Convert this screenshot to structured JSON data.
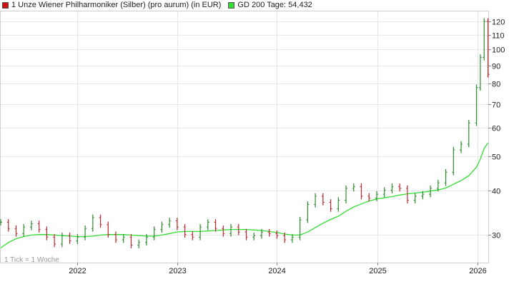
{
  "legend": {
    "price_label": "1 Unze Wiener Philharmoniker (Silber) (pro aurum) (in EUR)",
    "ma_label": "GD 200 Tage: 54,432"
  },
  "colors": {
    "up": "#2e8b2e",
    "down": "#c0262c",
    "ma": "#33dd33",
    "price_swatch": "#cc1111",
    "ma_swatch": "#33dd33",
    "grid": "#e6e6e6"
  },
  "footnote": "1 Tick = 1 Woche",
  "chart_data": {
    "type": "line",
    "y_scale": "log",
    "ylim": [
      25,
      128
    ],
    "y_ticks": [
      30,
      40,
      50,
      60,
      70,
      80,
      90,
      100,
      110,
      120
    ],
    "x_ticks": [
      "2022",
      "2023",
      "2024",
      "2025",
      "2026"
    ],
    "x_tick_dates": [
      "2022-01-01",
      "2023-01-01",
      "2024-01-01",
      "2025-01-01",
      "2026-01-01"
    ],
    "x_range": [
      "2021-03-29",
      "2026-02-10"
    ],
    "grid": true,
    "legend_position": "top-left",
    "series": [
      {
        "name": "1 Unze Wiener Philharmoniker (Silber) (pro aurum) (in EUR)",
        "kind": "weekly-ohlc",
        "x": [
          "2021-03-29",
          "2021-04-26",
          "2021-05-24",
          "2021-06-21",
          "2021-07-19",
          "2021-08-16",
          "2021-09-13",
          "2021-10-11",
          "2021-11-08",
          "2021-12-06",
          "2022-01-03",
          "2022-01-31",
          "2022-02-28",
          "2022-03-28",
          "2022-04-25",
          "2022-05-23",
          "2022-06-20",
          "2022-07-18",
          "2022-08-15",
          "2022-09-12",
          "2022-10-10",
          "2022-11-07",
          "2022-12-05",
          "2023-01-02",
          "2023-01-30",
          "2023-02-27",
          "2023-03-27",
          "2023-04-24",
          "2023-05-22",
          "2023-06-19",
          "2023-07-17",
          "2023-08-14",
          "2023-09-11",
          "2023-10-09",
          "2023-11-06",
          "2023-12-04",
          "2024-01-01",
          "2024-01-29",
          "2024-02-26",
          "2024-03-25",
          "2024-04-22",
          "2024-05-20",
          "2024-06-17",
          "2024-07-15",
          "2024-08-12",
          "2024-09-09",
          "2024-10-07",
          "2024-11-04",
          "2024-12-02",
          "2024-12-30",
          "2025-01-27",
          "2025-02-24",
          "2025-03-24",
          "2025-04-21",
          "2025-05-19",
          "2025-06-16",
          "2025-07-14",
          "2025-08-11",
          "2025-09-08",
          "2025-10-06",
          "2025-11-03",
          "2025-12-01",
          "2025-12-29",
          "2026-01-12",
          "2026-01-26",
          "2026-02-09"
        ],
        "values": [
          32.5,
          31.2,
          30.2,
          31.5,
          32.2,
          31.0,
          29.5,
          28.2,
          29.8,
          28.8,
          29.5,
          31.2,
          33.5,
          32.0,
          30.0,
          29.0,
          29.5,
          28.0,
          28.5,
          29.5,
          31.0,
          32.0,
          32.8,
          31.5,
          30.0,
          29.5,
          31.5,
          32.5,
          31.2,
          30.2,
          31.5,
          30.5,
          29.5,
          29.8,
          30.5,
          30.2,
          29.8,
          29.0,
          29.5,
          33.0,
          36.5,
          38.5,
          37.0,
          35.5,
          37.5,
          40.5,
          41.0,
          38.5,
          38.0,
          39.0,
          40.0,
          41.0,
          40.5,
          37.5,
          38.5,
          39.0,
          40.5,
          42.0,
          45.0,
          52.0,
          54.0,
          62.0,
          78.0,
          95.0,
          120.0,
          85.0
        ]
      },
      {
        "name": "GD 200 Tage",
        "values": [
          27.5,
          28.5,
          29.2,
          29.6,
          29.9,
          30.0,
          30.0,
          29.9,
          29.8,
          29.7,
          29.6,
          29.6,
          29.7,
          29.9,
          30.0,
          30.0,
          30.0,
          29.9,
          29.8,
          29.7,
          29.7,
          29.9,
          30.2,
          30.5,
          30.6,
          30.6,
          30.6,
          30.7,
          30.8,
          30.9,
          31.0,
          31.0,
          31.0,
          30.9,
          30.8,
          30.6,
          30.4,
          30.1,
          29.9,
          29.9,
          30.5,
          31.4,
          32.3,
          33.1,
          33.8,
          34.9,
          35.9,
          36.6,
          37.3,
          37.8,
          38.1,
          38.4,
          38.8,
          39.1,
          39.3,
          39.5,
          39.8,
          40.1,
          40.6,
          41.6,
          42.6,
          44.0,
          46.5,
          49.0,
          52.5,
          54.4
        ]
      }
    ]
  }
}
